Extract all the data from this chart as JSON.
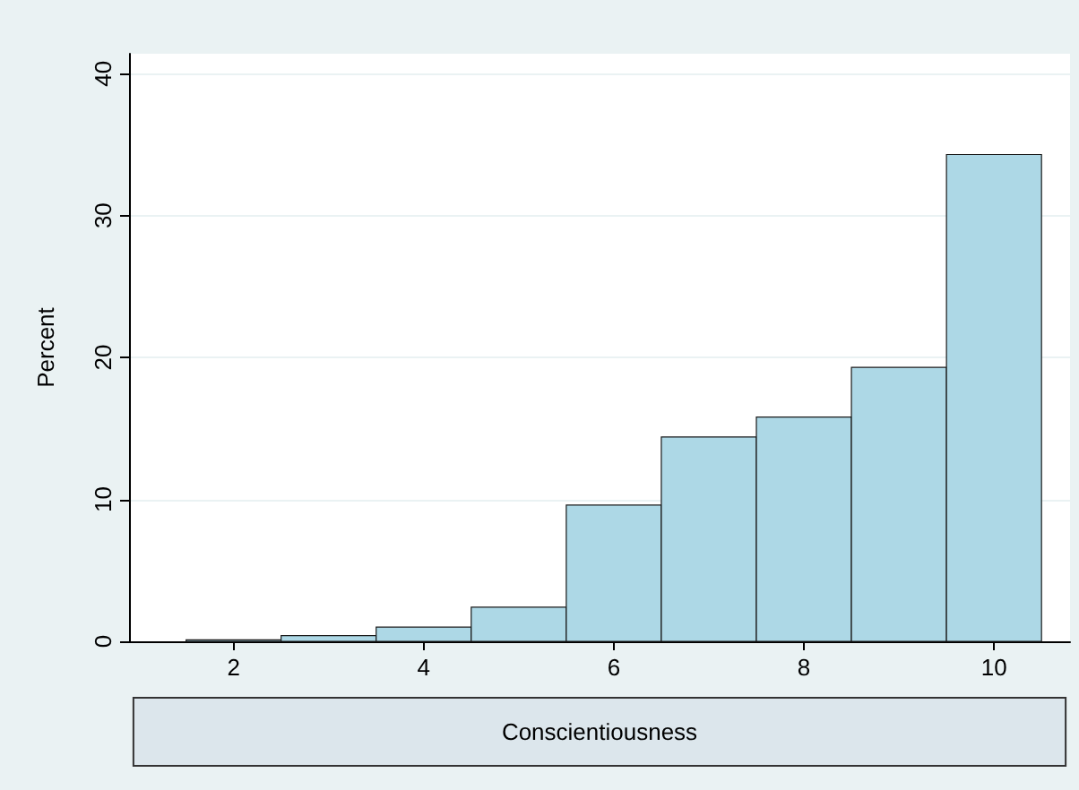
{
  "chart_data": {
    "type": "histogram",
    "xlabel": "Conscientiousness",
    "ylabel": "Percent",
    "bins": [
      1.5,
      2.5,
      3.5,
      4.5,
      5.5,
      6.5,
      7.5,
      8.5,
      9.5,
      10.5
    ],
    "values": [
      0.1,
      0.4,
      1.0,
      2.4,
      9.6,
      14.4,
      15.8,
      19.3,
      34.3
    ],
    "color": "#add8e6",
    "xlim": [
      0.9,
      10.8
    ],
    "xticks": [
      2,
      4,
      6,
      8,
      10
    ],
    "ylim": [
      0,
      41.4
    ],
    "yticks": [
      0,
      10,
      20,
      30,
      40
    ],
    "grid": "y"
  }
}
